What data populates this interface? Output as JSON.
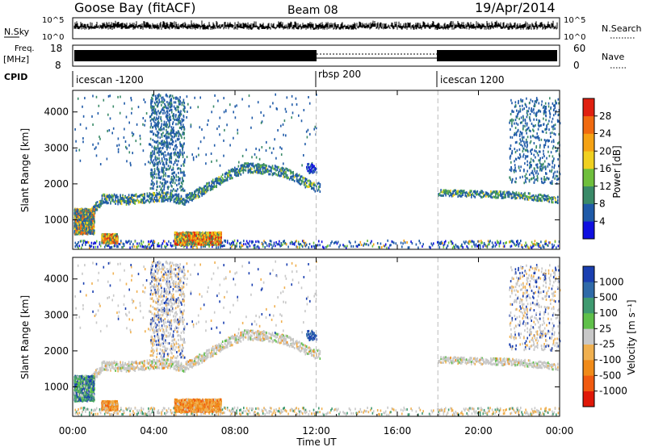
{
  "header": {
    "station": "Goose Bay (fitACF)",
    "beam": "Beam 08",
    "date": "19/Apr/2014"
  },
  "chart_data": [
    {
      "type": "line",
      "panel": "nsky-nsearch",
      "left_label": "N.Sky",
      "right_label": "N.Search",
      "left_ticks": [
        "10^5",
        "10^0"
      ],
      "right_ticks": [
        "10^5",
        "10^0"
      ]
    },
    {
      "type": "line",
      "panel": "freq-nave",
      "left_label_top": "Freq.",
      "left_label_bottom": "[MHz]",
      "right_label": "Nave",
      "left_ticks": [
        18,
        8
      ],
      "right_ticks": [
        60,
        0
      ]
    },
    {
      "type": "table",
      "panel": "cpid",
      "label": "CPID",
      "segments": [
        {
          "name": "icescan -1200",
          "start_hour": 0,
          "end_hour": 12
        },
        {
          "name": "rbsp 200",
          "start_hour": 12,
          "end_hour": 18
        },
        {
          "name": "icescan 1200",
          "start_hour": 18,
          "end_hour": 24
        }
      ]
    },
    {
      "type": "heatmap",
      "panel": "power",
      "ylabel": "Slant Range [km]",
      "yticks": [
        1000,
        2000,
        3000,
        4000
      ],
      "ylim": [
        180,
        4600
      ],
      "colorbar_label": "Power [dB]",
      "colorbar_ticks": [
        "4",
        "8",
        "12",
        "16",
        "20",
        "24",
        "28"
      ],
      "colorbar_colors": [
        "#1010e0",
        "#1f5aa8",
        "#3a8a68",
        "#6fbf3c",
        "#f0d020",
        "#f5a214",
        "#f06a10",
        "#e02010"
      ]
    },
    {
      "type": "heatmap",
      "panel": "velocity",
      "ylabel": "Slant Range [km]",
      "yticks": [
        1000,
        2000,
        3000,
        4000
      ],
      "ylim": [
        180,
        4600
      ],
      "colorbar_label": "Velocity [m s⁻¹]",
      "colorbar_ticks": [
        "1000",
        "500",
        "100",
        "25",
        "-25",
        "-100",
        "-500",
        "-1000"
      ],
      "colorbar_colors": [
        "#1a3fb0",
        "#2f6aa8",
        "#3f9a70",
        "#5fc04a",
        "#c8c8c8",
        "#f0b050",
        "#f08a18",
        "#f05a10",
        "#e01808"
      ]
    }
  ],
  "xaxis": {
    "label": "Time UT",
    "ticks": [
      "00:00",
      "04:00",
      "08:00",
      "12:00",
      "16:00",
      "20:00",
      "00:00"
    ],
    "tick_hours": [
      0,
      4,
      8,
      12,
      16,
      20,
      24
    ]
  },
  "bands": {
    "power_main": [
      [
        0.5,
        900
      ],
      [
        1.5,
        1600
      ],
      [
        2.5,
        1550
      ],
      [
        3.5,
        1600
      ],
      [
        4.5,
        1650
      ],
      [
        5.5,
        1550
      ],
      [
        6.5,
        1850
      ],
      [
        7.5,
        2200
      ],
      [
        8.5,
        2450
      ],
      [
        9.5,
        2400
      ],
      [
        10.5,
        2300
      ],
      [
        11.2,
        2100
      ],
      [
        11.8,
        1900
      ]
    ],
    "power_right": [
      [
        18.0,
        1750
      ],
      [
        19.5,
        1720
      ],
      [
        21.0,
        1700
      ],
      [
        22.5,
        1650
      ],
      [
        23.8,
        1550
      ]
    ]
  }
}
